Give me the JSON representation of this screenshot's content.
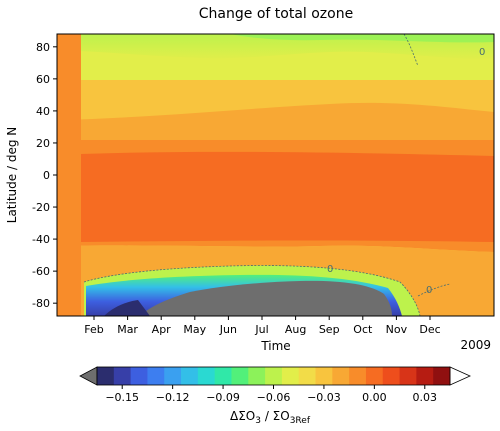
{
  "chart_data": {
    "type": "heatmap",
    "title": "Change of total ozone",
    "xlabel": "Time",
    "ylabel": "Latitude / deg N",
    "x_ticks": [
      "Feb",
      "Mar",
      "Apr",
      "May",
      "Jun",
      "Jul",
      "Aug",
      "Sep",
      "Oct",
      "Nov",
      "Dec"
    ],
    "x_secondary_label": "2009",
    "y_ticks": [
      80,
      60,
      40,
      20,
      0,
      -20,
      -40,
      -60,
      -80
    ],
    "ylim": [
      -88,
      88
    ],
    "contour_label": "0",
    "colorbar": {
      "label": "ΔΣO₃ / ΣO₃Ref",
      "label_main": "ΔΣO",
      "label_sub1": "3",
      "label_mid": " / ΣO",
      "label_sub2": "3Ref",
      "ticks": [
        "−0.15",
        "−0.12",
        "−0.09",
        "−0.06",
        "−0.03",
        "0.00",
        "0.03"
      ],
      "tick_values": [
        -0.15,
        -0.12,
        -0.09,
        -0.06,
        -0.03,
        0.0,
        0.03
      ],
      "min": -0.165,
      "max": 0.045,
      "step": 0.01,
      "extend": "both",
      "under_color": "#6e6e6e",
      "over_color": "#ffffff",
      "colors": [
        "#2b2d6e",
        "#373fa8",
        "#3d5fe0",
        "#3d7ef0",
        "#3aa0f0",
        "#33bfe8",
        "#2ad9d2",
        "#30e8a8",
        "#52f07a",
        "#8cf25a",
        "#bdf24c",
        "#e2ee4a",
        "#f2dc48",
        "#f8c43e",
        "#f8a834",
        "#f88c2a",
        "#f66c22",
        "#ee4e1c",
        "#d83418",
        "#b61c12",
        "#901010"
      ]
    },
    "bands": [
      {
        "lat_max": 88,
        "lat_min": 60,
        "value": -0.03
      },
      {
        "lat_max": 60,
        "lat_min": 36,
        "value": -0.02
      },
      {
        "lat_max": 36,
        "lat_min": 22,
        "value": -0.01
      },
      {
        "lat_max": 22,
        "lat_min": -45,
        "value": 0.01
      },
      {
        "lat_max": -45,
        "lat_min": -62,
        "value": 0.0
      },
      {
        "lat_max": -62,
        "lat_min": -70,
        "value": -0.07
      },
      {
        "lat_max": -70,
        "lat_min": -88,
        "value": -0.13
      }
    ]
  }
}
